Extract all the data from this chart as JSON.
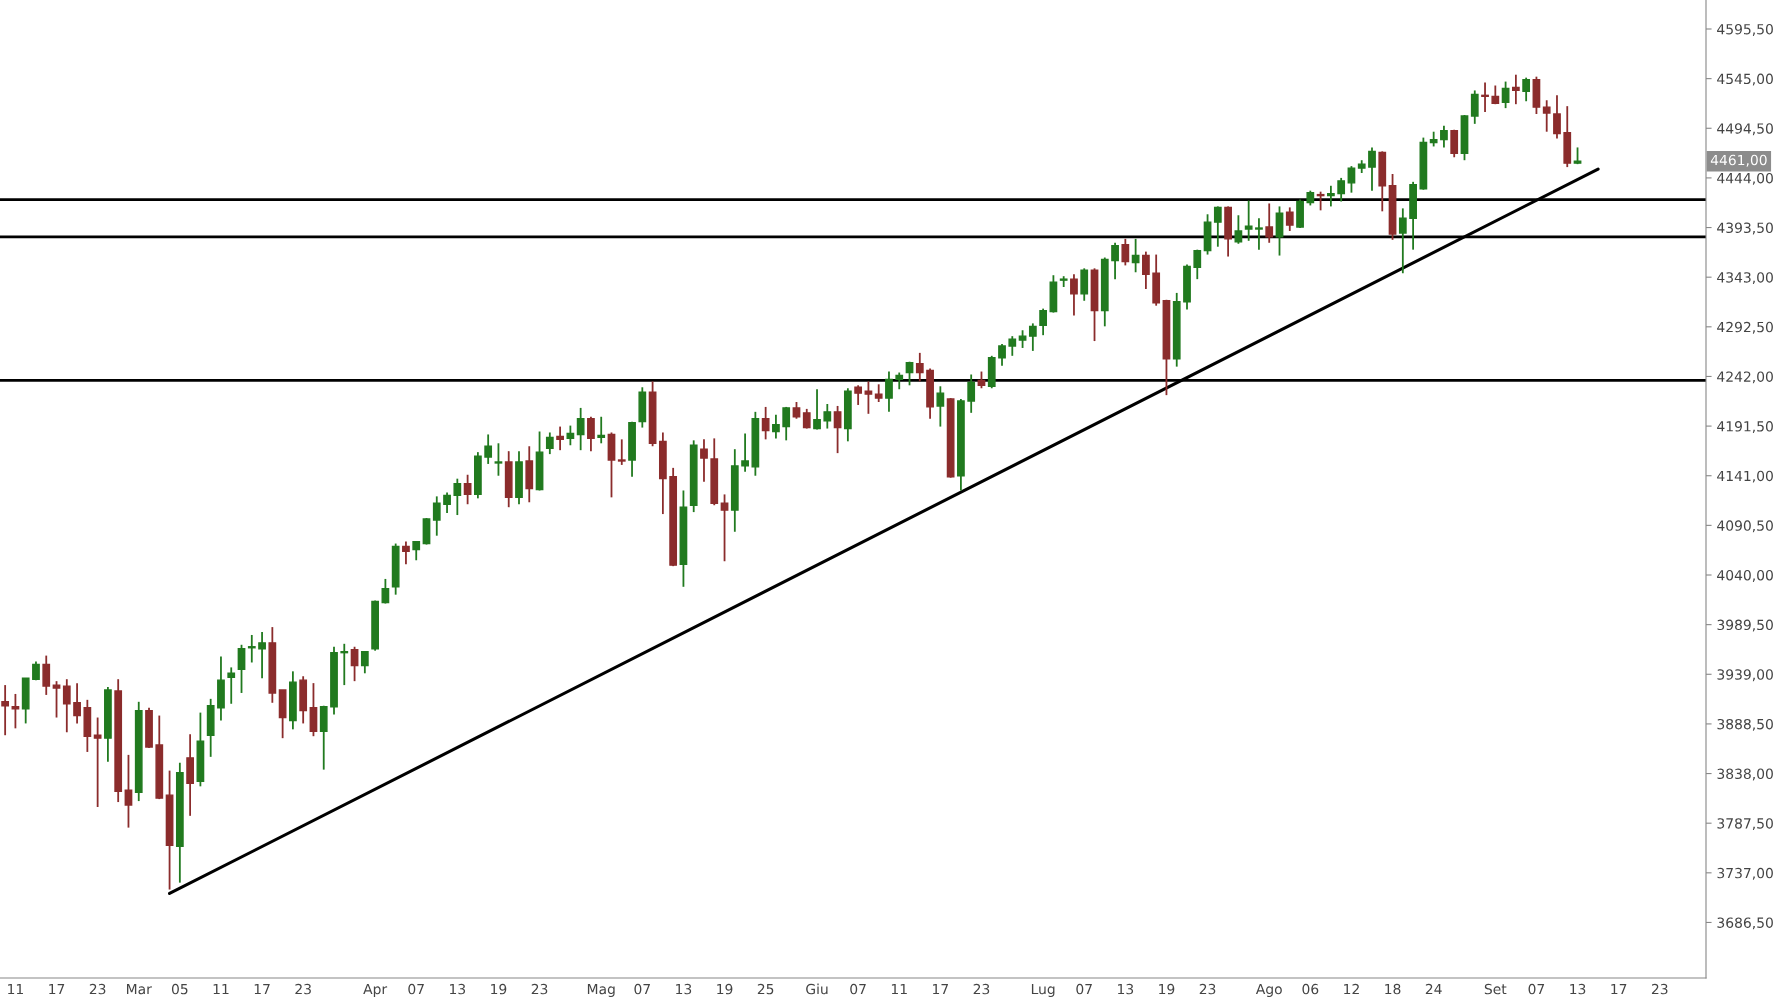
{
  "chart_data": {
    "type": "candlestick",
    "categories": [
      null,
      "11",
      null,
      null,
      null,
      "17",
      null,
      null,
      null,
      "23",
      null,
      null,
      null,
      "Mar",
      null,
      null,
      null,
      "05",
      null,
      null,
      null,
      "11",
      null,
      null,
      null,
      "17",
      null,
      null,
      null,
      "23",
      null,
      null,
      null,
      null,
      null,
      null,
      "Apr",
      null,
      null,
      null,
      "07",
      null,
      null,
      null,
      "13",
      null,
      null,
      null,
      "19",
      null,
      null,
      null,
      "23",
      null,
      null,
      null,
      null,
      null,
      "Mag",
      null,
      null,
      null,
      "07",
      null,
      null,
      null,
      "13",
      null,
      null,
      null,
      "19",
      null,
      null,
      null,
      "25",
      null,
      null,
      null,
      null,
      "Giu",
      null,
      null,
      null,
      "07",
      null,
      null,
      null,
      "11",
      null,
      null,
      null,
      "17",
      null,
      null,
      null,
      "23",
      null,
      null,
      null,
      null,
      null,
      "Lug",
      null,
      null,
      null,
      "07",
      null,
      null,
      null,
      "13",
      null,
      null,
      null,
      "19",
      null,
      null,
      null,
      "23",
      null,
      null,
      null,
      null,
      null,
      "Ago",
      null,
      null,
      null,
      "06",
      null,
      null,
      null,
      "12",
      null,
      null,
      null,
      "18",
      null,
      null,
      null,
      "24",
      null,
      null,
      null,
      null,
      null,
      "Set",
      null,
      null,
      null,
      "07",
      null,
      null,
      null,
      "13",
      null,
      null,
      null,
      "17",
      null,
      null,
      null,
      "23",
      null,
      null,
      null,
      null
    ],
    "ohlc": [
      [
        3911,
        3928,
        3877,
        3907
      ],
      [
        3906,
        3919,
        3884,
        3904
      ],
      [
        3904,
        3935,
        3889,
        3935
      ],
      [
        3934,
        3952,
        3933,
        3949
      ],
      [
        3949,
        3958,
        3918,
        3927
      ],
      [
        3928,
        3932,
        3895,
        3925
      ],
      [
        3927,
        3934,
        3880,
        3909
      ],
      [
        3910,
        3930,
        3889,
        3897
      ],
      [
        3905,
        3913,
        3860,
        3876
      ],
      [
        3877,
        3895,
        3804,
        3874
      ],
      [
        3874,
        3926,
        3850,
        3923
      ],
      [
        3922,
        3934,
        3809,
        3820
      ],
      [
        3821,
        3857,
        3783,
        3806
      ],
      [
        3819,
        3911,
        3810,
        3902
      ],
      [
        3902,
        3905,
        3864,
        3865
      ],
      [
        3867,
        3897,
        3812,
        3813
      ],
      [
        3816,
        3841,
        3720,
        3765
      ],
      [
        3764,
        3849,
        3727,
        3839
      ],
      [
        3854,
        3878,
        3795,
        3828
      ],
      [
        3830,
        3900,
        3825,
        3871
      ],
      [
        3877,
        3914,
        3855,
        3907
      ],
      [
        3905,
        3957,
        3892,
        3933
      ],
      [
        3936,
        3946,
        3909,
        3940
      ],
      [
        3944,
        3969,
        3920,
        3965
      ],
      [
        3966,
        3979,
        3951,
        3967
      ],
      [
        3965,
        3982,
        3935,
        3971
      ],
      [
        3971,
        3987,
        3910,
        3920
      ],
      [
        3923,
        3923,
        3874,
        3895
      ],
      [
        3892,
        3942,
        3883,
        3931
      ],
      [
        3933,
        3937,
        3889,
        3902
      ],
      [
        3905,
        3930,
        3876,
        3881
      ],
      [
        3881,
        3907,
        3842,
        3906
      ],
      [
        3906,
        3967,
        3898,
        3961
      ],
      [
        3961,
        3970,
        3928,
        3962
      ],
      [
        3964,
        3967,
        3932,
        3948
      ],
      [
        3948,
        3962,
        3940,
        3962
      ],
      [
        3965,
        4014,
        3963,
        4013
      ],
      [
        4012,
        4036,
        4011,
        4026
      ],
      [
        4028,
        4072,
        4020,
        4069
      ],
      [
        4069,
        4074,
        4051,
        4064
      ],
      [
        4066,
        4074,
        4055,
        4074
      ],
      [
        4072,
        4098,
        4071,
        4097
      ],
      [
        4096,
        4120,
        4080,
        4113
      ],
      [
        4112,
        4124,
        4103,
        4121
      ],
      [
        4121,
        4138,
        4101,
        4133
      ],
      [
        4133,
        4142,
        4112,
        4122
      ],
      [
        4122,
        4165,
        4118,
        4161
      ],
      [
        4160,
        4183,
        4153,
        4171
      ],
      [
        4154,
        4174,
        4141,
        4155
      ],
      [
        4155,
        4166,
        4109,
        4119
      ],
      [
        4119,
        4166,
        4112,
        4155
      ],
      [
        4156,
        4171,
        4114,
        4128
      ],
      [
        4127,
        4186,
        4126,
        4165
      ],
      [
        4169,
        4185,
        4163,
        4180
      ],
      [
        4181,
        4191,
        4167,
        4178
      ],
      [
        4179,
        4192,
        4172,
        4184
      ],
      [
        4183,
        4210,
        4167,
        4199
      ],
      [
        4199,
        4201,
        4166,
        4179
      ],
      [
        4180,
        4201,
        4174,
        4182
      ],
      [
        4183,
        4185,
        4119,
        4157
      ],
      [
        4157,
        4178,
        4152,
        4156
      ],
      [
        4157,
        4196,
        4140,
        4195
      ],
      [
        4196,
        4231,
        4190,
        4226
      ],
      [
        4226,
        4237,
        4171,
        4174
      ],
      [
        4176,
        4185,
        4102,
        4138
      ],
      [
        4140,
        4149,
        4049,
        4050
      ],
      [
        4051,
        4126,
        4028,
        4109
      ],
      [
        4111,
        4177,
        4104,
        4172
      ],
      [
        4168,
        4178,
        4135,
        4159
      ],
      [
        4158,
        4179,
        4111,
        4113
      ],
      [
        4113,
        4122,
        4054,
        4106
      ],
      [
        4106,
        4168,
        4084,
        4151
      ],
      [
        4151,
        4184,
        4145,
        4156
      ],
      [
        4150,
        4206,
        4141,
        4199
      ],
      [
        4199,
        4211,
        4178,
        4187
      ],
      [
        4186,
        4203,
        4179,
        4193
      ],
      [
        4191,
        4211,
        4177,
        4210
      ],
      [
        4210,
        4216,
        4199,
        4201
      ],
      [
        4205,
        4209,
        4189,
        4190
      ],
      [
        4189,
        4229,
        4188,
        4198
      ],
      [
        4197,
        4214,
        4189,
        4206
      ],
      [
        4206,
        4212,
        4164,
        4190
      ],
      [
        4189,
        4230,
        4176,
        4227
      ],
      [
        4231,
        4233,
        4213,
        4225
      ],
      [
        4227,
        4237,
        4204,
        4224
      ],
      [
        4224,
        4234,
        4216,
        4220
      ],
      [
        4220,
        4247,
        4206,
        4239
      ],
      [
        4239,
        4246,
        4229,
        4243
      ],
      [
        4246,
        4257,
        4233,
        4256
      ],
      [
        4255,
        4266,
        4237,
        4246
      ],
      [
        4248,
        4250,
        4199,
        4211
      ],
      [
        4212,
        4232,
        4191,
        4225
      ],
      [
        4219,
        4220,
        4139,
        4140
      ],
      [
        4141,
        4219,
        4126,
        4217
      ],
      [
        4217,
        4244,
        4205,
        4236
      ],
      [
        4238,
        4247,
        4230,
        4233
      ],
      [
        4232,
        4263,
        4230,
        4261
      ],
      [
        4261,
        4275,
        4253,
        4273
      ],
      [
        4273,
        4283,
        4263,
        4280
      ],
      [
        4279,
        4289,
        4271,
        4283
      ],
      [
        4283,
        4296,
        4268,
        4293
      ],
      [
        4294,
        4311,
        4284,
        4309
      ],
      [
        4308,
        4345,
        4307,
        4338
      ],
      [
        4340,
        4344,
        4333,
        4341
      ],
      [
        4341,
        4346,
        4304,
        4326
      ],
      [
        4326,
        4352,
        4319,
        4350
      ],
      [
        4350,
        4352,
        4278,
        4309
      ],
      [
        4309,
        4363,
        4293,
        4361
      ],
      [
        4360,
        4378,
        4341,
        4375
      ],
      [
        4376,
        4382,
        4355,
        4359
      ],
      [
        4358,
        4382,
        4348,
        4365
      ],
      [
        4365,
        4369,
        4331,
        4346
      ],
      [
        4347,
        4366,
        4314,
        4317
      ],
      [
        4319,
        4320,
        4223,
        4260
      ],
      [
        4260,
        4327,
        4252,
        4318
      ],
      [
        4318,
        4356,
        4310,
        4354
      ],
      [
        4353,
        4371,
        4341,
        4370
      ],
      [
        4370,
        4407,
        4366,
        4399
      ],
      [
        4399,
        4415,
        4374,
        4414
      ],
      [
        4414,
        4415,
        4364,
        4382
      ],
      [
        4379,
        4406,
        4377,
        4390
      ],
      [
        4392,
        4421,
        4380,
        4395
      ],
      [
        4392,
        4403,
        4371,
        4393
      ],
      [
        4394,
        4418,
        4378,
        4384
      ],
      [
        4384,
        4415,
        4365,
        4408
      ],
      [
        4409,
        4414,
        4390,
        4396
      ],
      [
        4394,
        4422,
        4393,
        4420
      ],
      [
        4419,
        4431,
        4416,
        4429
      ],
      [
        4427,
        4430,
        4411,
        4426
      ],
      [
        4426,
        4436,
        4415,
        4428
      ],
      [
        4428,
        4444,
        4420,
        4441
      ],
      [
        4439,
        4456,
        4429,
        4454
      ],
      [
        4454,
        4462,
        4449,
        4458
      ],
      [
        4455,
        4475,
        4431,
        4471
      ],
      [
        4470,
        4471,
        4410,
        4436
      ],
      [
        4436,
        4448,
        4381,
        4387
      ],
      [
        4388,
        4413,
        4347,
        4403
      ],
      [
        4403,
        4440,
        4371,
        4437
      ],
      [
        4433,
        4485,
        4432,
        4480
      ],
      [
        4480,
        4491,
        4476,
        4483
      ],
      [
        4483,
        4497,
        4475,
        4492
      ],
      [
        4492,
        4493,
        4465,
        4469
      ],
      [
        4469,
        4508,
        4462,
        4507
      ],
      [
        4507,
        4533,
        4499,
        4529
      ],
      [
        4528,
        4541,
        4511,
        4527
      ],
      [
        4527,
        4538,
        4519,
        4520
      ],
      [
        4521,
        4542,
        4515,
        4535
      ],
      [
        4536,
        4549,
        4519,
        4533
      ],
      [
        4532,
        4546,
        4522,
        4544
      ],
      [
        4544,
        4547,
        4509,
        4516
      ],
      [
        4516,
        4523,
        4491,
        4510
      ],
      [
        4509,
        4528,
        4484,
        4489
      ],
      [
        4490,
        4517,
        4455,
        4459
      ],
      [
        4459,
        4475,
        4458,
        4461
      ],
      null,
      null,
      null,
      null,
      null,
      null,
      null,
      null,
      null,
      null,
      null,
      null
    ],
    "colors": [
      "#8b2c2c",
      "#8b2c2c",
      "#217a1f",
      "#217a1f",
      "#8b2c2c",
      "#8b2c2c",
      "#8b2c2c",
      "#8b2c2c",
      "#8b2c2c",
      "#8b2c2c",
      "#217a1f",
      "#8b2c2c",
      "#8b2c2c",
      "#217a1f",
      "#8b2c2c",
      "#8b2c2c",
      "#8b2c2c",
      "#217a1f",
      "#8b2c2c",
      "#217a1f",
      "#217a1f",
      "#217a1f",
      "#217a1f",
      "#217a1f",
      "#217a1f",
      "#217a1f",
      "#8b2c2c",
      "#8b2c2c",
      "#217a1f",
      "#8b2c2c",
      "#8b2c2c",
      "#217a1f",
      "#217a1f",
      "#217a1f",
      "#8b2c2c",
      "#217a1f",
      "#217a1f",
      "#217a1f",
      "#217a1f",
      "#8b2c2c",
      "#217a1f",
      "#217a1f",
      "#217a1f",
      "#217a1f",
      "#217a1f",
      "#8b2c2c",
      "#217a1f",
      "#217a1f",
      "#217a1f",
      "#8b2c2c",
      "#217a1f",
      "#8b2c2c",
      "#217a1f",
      "#217a1f",
      "#8b2c2c",
      "#217a1f",
      "#217a1f",
      "#8b2c2c",
      "#217a1f",
      "#8b2c2c",
      "#8b2c2c",
      "#217a1f",
      "#217a1f",
      "#8b2c2c",
      "#8b2c2c",
      "#8b2c2c",
      "#217a1f",
      "#217a1f",
      "#8b2c2c",
      "#8b2c2c",
      "#8b2c2c",
      "#217a1f",
      "#217a1f",
      "#217a1f",
      "#8b2c2c",
      "#217a1f",
      "#217a1f",
      "#8b2c2c",
      "#8b2c2c",
      "#217a1f",
      "#217a1f",
      "#8b2c2c",
      "#217a1f",
      "#8b2c2c",
      "#8b2c2c",
      "#8b2c2c",
      "#217a1f",
      "#217a1f",
      "#217a1f",
      "#8b2c2c",
      "#8b2c2c",
      "#217a1f",
      "#8b2c2c",
      "#217a1f",
      "#217a1f",
      "#8b2c2c",
      "#217a1f",
      "#217a1f",
      "#217a1f",
      "#217a1f",
      "#217a1f",
      "#217a1f",
      "#217a1f",
      "#217a1f",
      "#8b2c2c",
      "#217a1f",
      "#8b2c2c",
      "#217a1f",
      "#217a1f",
      "#8b2c2c",
      "#217a1f",
      "#8b2c2c",
      "#8b2c2c",
      "#8b2c2c",
      "#217a1f",
      "#217a1f",
      "#217a1f",
      "#217a1f",
      "#217a1f",
      "#8b2c2c",
      "#217a1f",
      "#217a1f",
      "#217a1f",
      "#8b2c2c",
      "#217a1f",
      "#8b2c2c",
      "#217a1f",
      "#217a1f",
      "#8b2c2c",
      "#217a1f",
      "#217a1f",
      "#217a1f",
      "#217a1f",
      "#217a1f",
      "#8b2c2c",
      "#8b2c2c",
      "#217a1f",
      "#217a1f",
      "#217a1f",
      "#217a1f",
      "#217a1f",
      "#8b2c2c",
      "#217a1f",
      "#217a1f",
      "#8b2c2c",
      "#8b2c2c",
      "#217a1f",
      "#8b2c2c",
      "#217a1f",
      "#8b2c2c",
      "#8b2c2c",
      "#8b2c2c",
      "#8b2c2c",
      "#217a1f",
      null,
      null,
      null,
      null,
      null,
      null,
      null,
      null,
      null,
      null,
      null,
      null
    ],
    "series": [
      {
        "type": "line",
        "color": "#000000",
        "values": [
          null,
          null,
          null,
          null,
          null,
          null,
          null,
          null,
          null,
          null,
          null,
          null,
          null,
          null,
          null,
          null,
          3716,
          null,
          null,
          null,
          null,
          null,
          null,
          null,
          null,
          null,
          null,
          null,
          null,
          null,
          null,
          null,
          null,
          null,
          null,
          null,
          null,
          null,
          null,
          null,
          null,
          null,
          null,
          null,
          null,
          null,
          null,
          null,
          null,
          null,
          null,
          null,
          null,
          null,
          null,
          null,
          null,
          null,
          null,
          null,
          null,
          null,
          null,
          null,
          null,
          null,
          null,
          null,
          null,
          null,
          null,
          null,
          null,
          null,
          null,
          null,
          null,
          null,
          null,
          null,
          null,
          null,
          null,
          null,
          null,
          null,
          null,
          null,
          null,
          null,
          null,
          null,
          null,
          null,
          null,
          null,
          null,
          null,
          null,
          null,
          null,
          null,
          null,
          null,
          null,
          null,
          null,
          null,
          null,
          null,
          null,
          null,
          null,
          null,
          null,
          null,
          null,
          null,
          null,
          null,
          null,
          null,
          null,
          null,
          null,
          null,
          null,
          null,
          null,
          null,
          null,
          null,
          null,
          null,
          null,
          null,
          null,
          null,
          null,
          null,
          null,
          null,
          null,
          null,
          null,
          null,
          null,
          null,
          null,
          null,
          null,
          null,
          null,
          null,
          null,
          4453,
          null,
          null,
          null,
          null,
          null,
          null,
          null,
          null,
          null,
          null
        ]
      }
    ],
    "ref_lines": [
      {
        "axis": "y",
        "value": 4422,
        "color": "#000000"
      },
      {
        "axis": "y",
        "value": 4384,
        "color": "#000000"
      },
      {
        "axis": "y",
        "value": 4238,
        "color": "#000000"
      }
    ],
    "annotations": [
      "4461,00"
    ],
    "ylim": [
      3630,
      4625
    ],
    "yticks": [
      {
        "value": 3686.5,
        "label": "3686,50"
      },
      {
        "value": 3737,
        "label": "3737,00"
      },
      {
        "value": 3787.5,
        "label": "3787,50"
      },
      {
        "value": 3838,
        "label": "3838,00"
      },
      {
        "value": 3888.5,
        "label": "3888,50"
      },
      {
        "value": 3939,
        "label": "3939,00"
      },
      {
        "value": 3989.5,
        "label": "3989,50"
      },
      {
        "value": 4040,
        "label": "4040,00"
      },
      {
        "value": 4090.5,
        "label": "4090,50"
      },
      {
        "value": 4141,
        "label": "4141,00"
      },
      {
        "value": 4191.5,
        "label": "4191,50"
      },
      {
        "value": 4242,
        "label": "4242,00"
      },
      {
        "value": 4292.5,
        "label": "4292,50"
      },
      {
        "value": 4343,
        "label": "4343,00"
      },
      {
        "value": 4393.5,
        "label": "4393,50"
      },
      {
        "value": 4444,
        "label": "4444,00"
      },
      {
        "value": 4494.5,
        "label": "4494,50"
      },
      {
        "value": 4545,
        "label": "4545,00"
      },
      {
        "value": 4595.5,
        "label": "4595,50"
      }
    ],
    "grid": false,
    "legend": false
  }
}
